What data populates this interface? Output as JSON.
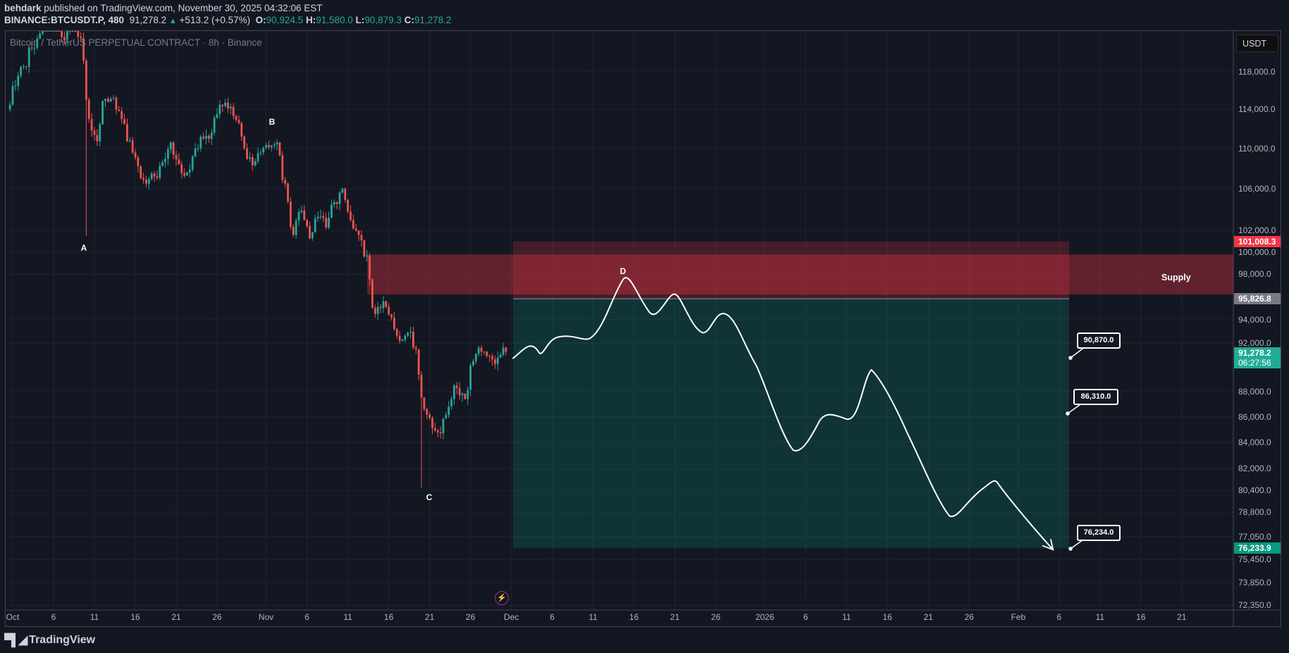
{
  "header": {
    "author": "behdark",
    "published": "published on TradingView.com, November 30, 2025 04:32:06 EST",
    "symbol": "BINANCE:BTCUSDT.P, 480",
    "last": "91,278.2",
    "change": "+513.2 (+0.57%)",
    "o_label": "O:",
    "o": "90,924.5",
    "h_label": "H:",
    "h": "91,580.0",
    "l_label": "L:",
    "l": "90,879.3",
    "c_label": "C:",
    "c": "91,278.2"
  },
  "legend": "Bitcoin / TetherUS PERPETUAL CONTRACT · 8h · Binance",
  "currency_button": "USDT",
  "price_axis": [
    "118,000.0",
    "114,000.0",
    "110,000.0",
    "106,000.0",
    "102,000.0",
    "100,000.0",
    "98,000.0",
    "94,000.0",
    "92,000.0",
    "88,000.0",
    "86,000.0",
    "84,000.0",
    "82,000.0",
    "80,400.0",
    "78,800.0",
    "77,050.0",
    "75,450.0",
    "73,850.0",
    "72,350.0"
  ],
  "price_tags": {
    "stop": "101,008.3",
    "entry": "95,826.8",
    "last": "91,278.2",
    "countdown": "06:27:56",
    "target": "76,233.9"
  },
  "time_axis": [
    "Oct",
    "6",
    "11",
    "16",
    "21",
    "26",
    "Nov",
    "6",
    "11",
    "16",
    "21",
    "26",
    "Dec",
    "6",
    "11",
    "16",
    "21",
    "26",
    "2026",
    "6",
    "11",
    "16",
    "21",
    "26",
    "Feb",
    "6",
    "11",
    "16",
    "21"
  ],
  "annotations": {
    "a": "A",
    "b": "B",
    "c": "C",
    "d": "D",
    "supply": "Supply"
  },
  "callouts": [
    "90,870.0",
    "86,310.0",
    "76,234.0"
  ],
  "colors": {
    "up": "#26a69a",
    "down": "#ef5350",
    "stop_tag": "#f23645",
    "target_tag": "#089981",
    "entry_tag": "#787b86",
    "last_tag": "#22ab94"
  },
  "footer": {
    "brand": "TradingView"
  },
  "chart_data": {
    "type": "candlestick",
    "interval": "8h",
    "start_date": "2025-10-01",
    "daily_close": [
      116500,
      118600,
      120600,
      122200,
      123500,
      124700,
      121500,
      123300,
      121700,
      113000,
      110700,
      115100,
      115200,
      113000,
      110800,
      108200,
      106500,
      107200,
      108600,
      110600,
      108400,
      107600,
      110000,
      111000,
      111600,
      114500,
      114100,
      112900,
      110000,
      108300,
      109600,
      110100,
      110600,
      106500,
      101600,
      103900,
      101300,
      103300,
      102300,
      104700,
      106000,
      103000,
      101600,
      99700,
      94500,
      95600,
      94200,
      92200,
      92900,
      91500,
      86600,
      85100,
      84700,
      86800,
      88300,
      87400,
      90500,
      91300,
      90900,
      90800,
      91278.2
    ],
    "special_lows": {
      "9": 101500,
      "50": 80600
    },
    "position": {
      "stop": 101008.3,
      "entry": 95826.8,
      "target": 76233.9
    },
    "supply_zone": [
      96200,
      99800
    ]
  }
}
